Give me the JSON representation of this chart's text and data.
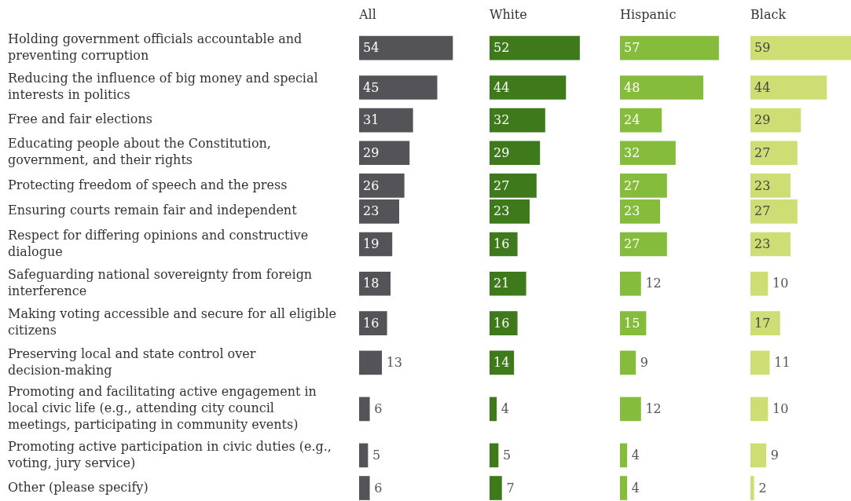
{
  "chart_data": [
    {
      "type": "bar",
      "orientation": "horizontal",
      "title": "All",
      "categories": [
        "Holding government officials accountable and preventing corruption",
        "Reducing the influence of big money and special interests in politics",
        "Free and fair elections",
        "Educating people about the Constitution, government, and their rights",
        "Protecting freedom of speech and the press",
        "Ensuring courts remain fair and independent",
        "Respect for differing opinions and constructive dialogue",
        "Safeguarding national sovereignty from foreign interference",
        "Making voting accessible and secure for all eligible citizens",
        "Preserving local and state control over decision-making",
        "Promoting and facilitating active engagement in local civic life (e.g., attending city council meetings, participating in community events)",
        "Promoting active participation in civic duties (e.g., voting, jury service)",
        "Other (please specify)"
      ],
      "values": [
        54,
        45,
        31,
        29,
        26,
        23,
        19,
        18,
        16,
        13,
        6,
        5,
        6
      ],
      "color": "#545358",
      "data_labels": true,
      "tick_labels": "y"
    },
    {
      "type": "bar",
      "orientation": "horizontal",
      "title": "White",
      "categories": [
        null,
        null,
        null,
        null,
        null,
        null,
        null,
        null,
        null,
        null,
        null,
        null,
        null
      ],
      "values": [
        52,
        44,
        32,
        29,
        27,
        23,
        16,
        21,
        16,
        14,
        4,
        5,
        7
      ],
      "color": "#3e7a1c",
      "data_labels": true,
      "tick_labels": false
    },
    {
      "type": "bar",
      "orientation": "horizontal",
      "title": "Hispanic",
      "categories": [
        null,
        null,
        null,
        null,
        null,
        null,
        null,
        null,
        null,
        null,
        null,
        null,
        null
      ],
      "values": [
        57,
        48,
        24,
        32,
        27,
        23,
        27,
        12,
        15,
        9,
        12,
        4,
        4
      ],
      "color": "#86bc3c",
      "data_labels": true,
      "tick_labels": false
    },
    {
      "type": "bar",
      "orientation": "horizontal",
      "title": "Black",
      "categories": [
        null,
        null,
        null,
        null,
        null,
        null,
        null,
        null,
        null,
        null,
        null,
        null,
        null
      ],
      "values": [
        59,
        44,
        29,
        27,
        23,
        27,
        23,
        10,
        17,
        11,
        10,
        9,
        2
      ],
      "color": "#cfde74",
      "data_labels": true,
      "tick_labels": false
    }
  ]
}
